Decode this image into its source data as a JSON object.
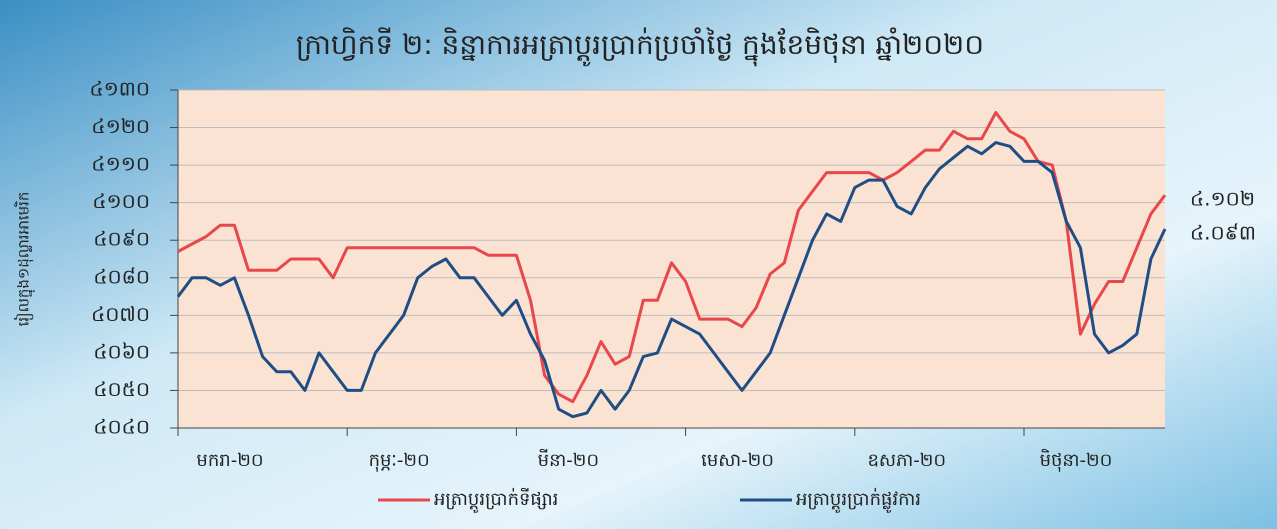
{
  "chart_data": {
    "type": "line",
    "title": "ក្រាហ្វិកទី ២: និន្នាការអត្រាប្តូរប្រាក់ប្រចាំថ្ងៃ ក្នុងខែមិថុនា ឆ្នាំ២០២០",
    "y_label": "រៀលក្នុង១ដុល្លារអាមេរិក",
    "categories": [
      "មករា-២០",
      null,
      null,
      null,
      null,
      null,
      null,
      null,
      null,
      null,
      null,
      null,
      "កុម្ភៈ-២០",
      null,
      null,
      null,
      null,
      null,
      null,
      null,
      null,
      null,
      null,
      null,
      "មីនា-២០",
      null,
      null,
      null,
      null,
      null,
      null,
      null,
      null,
      null,
      null,
      null,
      "មេសា-២០",
      null,
      null,
      null,
      null,
      null,
      null,
      null,
      null,
      null,
      null,
      null,
      "ឧសភា-២០",
      null,
      null,
      null,
      null,
      null,
      null,
      null,
      null,
      null,
      null,
      null,
      "មិថុនា-២០",
      null,
      null,
      null,
      null,
      null,
      null,
      null,
      null,
      null,
      null
    ],
    "series": [
      {
        "name": "អត្រាប្តូរប្រាក់ទីផ្សារ",
        "color": "#e8474c",
        "values": [
          4087,
          4089,
          4091,
          4094,
          4094,
          4082,
          4082,
          4082,
          4085,
          4085,
          4085,
          4080,
          4088,
          4088,
          4088,
          4088,
          4088,
          4088,
          4088,
          4088,
          4088,
          4088,
          4086,
          4086,
          4086,
          4074,
          4054,
          4049,
          4047,
          4054,
          4063,
          4057,
          4059,
          4074,
          4074,
          4084,
          4079,
          4069,
          4069,
          4069,
          4067,
          4072,
          4081,
          4084,
          4098,
          4103,
          4108,
          4108,
          4108,
          4108,
          4106,
          4108,
          4111,
          4114,
          4114,
          4119,
          4117,
          4117,
          4124,
          4119,
          4117,
          4111,
          4110,
          4095,
          4065,
          4073,
          4079,
          4079,
          4088,
          4097,
          4102
        ],
        "value_labels": [
          null,
          null,
          null,
          null,
          null,
          null,
          null,
          null,
          null,
          null,
          null,
          null,
          null,
          null,
          null,
          null,
          null,
          null,
          null,
          null,
          null,
          null,
          null,
          null,
          null,
          null,
          null,
          null,
          null,
          null,
          null,
          null,
          null,
          null,
          null,
          null,
          null,
          null,
          null,
          null,
          null,
          null,
          null,
          null,
          null,
          null,
          null,
          null,
          null,
          null,
          null,
          null,
          null,
          null,
          null,
          null,
          null,
          null,
          null,
          null,
          null,
          null,
          null,
          null,
          null,
          null,
          null,
          null,
          null,
          null,
          "៤.១០២"
        ]
      },
      {
        "name": "អត្រាប្តូរប្រាក់ផ្លូវការ",
        "color": "#1f4e85",
        "values": [
          4075,
          4080,
          4080,
          4078,
          4080,
          4070,
          4059,
          4055,
          4055,
          4050,
          4060,
          4055,
          4050,
          4050,
          4060,
          4065,
          4070,
          4080,
          4083,
          4085,
          4080,
          4080,
          4075,
          4070,
          4074,
          4065,
          4058,
          4045,
          4043,
          4044,
          4050,
          4045,
          4050,
          4059,
          4060,
          4069,
          4067,
          4065,
          4060,
          4055,
          4050,
          4055,
          4060,
          4070,
          4080,
          4090,
          4097,
          4095,
          4104,
          4106,
          4106,
          4099,
          4097,
          4104,
          4109,
          4112,
          4115,
          4113,
          4116,
          4115,
          4111,
          4111,
          4108,
          4095,
          4088,
          4065,
          4060,
          4062,
          4065,
          4085,
          4093
        ],
        "value_labels": [
          null,
          null,
          null,
          null,
          null,
          null,
          null,
          null,
          null,
          null,
          null,
          null,
          null,
          null,
          null,
          null,
          null,
          null,
          null,
          null,
          null,
          null,
          null,
          null,
          null,
          null,
          null,
          null,
          null,
          null,
          null,
          null,
          null,
          null,
          null,
          null,
          null,
          null,
          null,
          null,
          null,
          null,
          null,
          null,
          null,
          null,
          null,
          null,
          null,
          null,
          null,
          null,
          null,
          null,
          null,
          null,
          null,
          null,
          null,
          null,
          null,
          null,
          null,
          null,
          null,
          null,
          null,
          null,
          null,
          null,
          "៤.០៩៣"
        ]
      }
    ],
    "ylim": [
      4040,
      4130
    ],
    "yticks": [
      {
        "value": 4040,
        "label": "៤០៤០"
      },
      {
        "value": 4050,
        "label": "៤០៥០"
      },
      {
        "value": 4060,
        "label": "៤០៦០"
      },
      {
        "value": 4070,
        "label": "៤០៧០"
      },
      {
        "value": 4080,
        "label": "៤០៨០"
      },
      {
        "value": 4090,
        "label": "៤០៩០"
      },
      {
        "value": 4100,
        "label": "៤១០០"
      },
      {
        "value": 4110,
        "label": "៤១១០"
      },
      {
        "value": 4120,
        "label": "៤១២០"
      },
      {
        "value": 4130,
        "label": "៤១៣០"
      }
    ],
    "grid": true
  }
}
